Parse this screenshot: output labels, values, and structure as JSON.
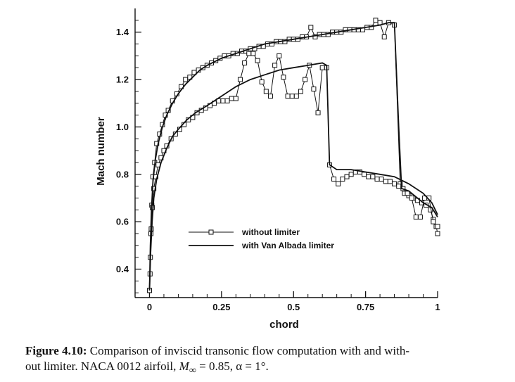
{
  "chart_data": {
    "type": "line",
    "xlabel": "chord",
    "ylabel": "Mach number",
    "xlim": [
      -0.05,
      1.0
    ],
    "ylim": [
      0.28,
      1.5
    ],
    "xticks": [
      0,
      0.25,
      0.5,
      0.75,
      1
    ],
    "xtick_labels": [
      "0",
      "0.25",
      "0.5",
      "0.75",
      "1"
    ],
    "yticks": [
      0.4,
      0.6,
      0.8,
      1.0,
      1.2,
      1.4
    ],
    "ytick_labels": [
      "0.4",
      "0.6",
      "0.8",
      "1.0",
      "1.2",
      "1.4"
    ],
    "grid": false,
    "legend_position": "center-left",
    "series": [
      {
        "name": "without limiter",
        "style": "solid-square-markers",
        "upper": [
          [
            0.0,
            0.31
          ],
          [
            0.002,
            0.38
          ],
          [
            0.005,
            0.55
          ],
          [
            0.008,
            0.67
          ],
          [
            0.012,
            0.79
          ],
          [
            0.018,
            0.85
          ],
          [
            0.025,
            0.93
          ],
          [
            0.035,
            0.97
          ],
          [
            0.045,
            1.01
          ],
          [
            0.055,
            1.05
          ],
          [
            0.065,
            1.07
          ],
          [
            0.08,
            1.11
          ],
          [
            0.095,
            1.14
          ],
          [
            0.11,
            1.17
          ],
          [
            0.125,
            1.2
          ],
          [
            0.14,
            1.21
          ],
          [
            0.155,
            1.23
          ],
          [
            0.17,
            1.24
          ],
          [
            0.185,
            1.25
          ],
          [
            0.2,
            1.26
          ],
          [
            0.215,
            1.27
          ],
          [
            0.23,
            1.28
          ],
          [
            0.245,
            1.29
          ],
          [
            0.26,
            1.3
          ],
          [
            0.275,
            1.3
          ],
          [
            0.29,
            1.31
          ],
          [
            0.305,
            1.31
          ],
          [
            0.32,
            1.32
          ],
          [
            0.335,
            1.32
          ],
          [
            0.35,
            1.33
          ],
          [
            0.365,
            1.33
          ],
          [
            0.38,
            1.34
          ],
          [
            0.395,
            1.34
          ],
          [
            0.41,
            1.35
          ],
          [
            0.425,
            1.35
          ],
          [
            0.44,
            1.36
          ],
          [
            0.455,
            1.36
          ],
          [
            0.47,
            1.36
          ],
          [
            0.485,
            1.37
          ],
          [
            0.5,
            1.37
          ],
          [
            0.515,
            1.37
          ],
          [
            0.53,
            1.38
          ],
          [
            0.545,
            1.38
          ],
          [
            0.56,
            1.42
          ],
          [
            0.575,
            1.38
          ],
          [
            0.59,
            1.39
          ],
          [
            0.605,
            1.39
          ],
          [
            0.62,
            1.39
          ],
          [
            0.635,
            1.4
          ],
          [
            0.65,
            1.4
          ],
          [
            0.665,
            1.4
          ],
          [
            0.68,
            1.41
          ],
          [
            0.695,
            1.41
          ],
          [
            0.71,
            1.41
          ],
          [
            0.725,
            1.41
          ],
          [
            0.74,
            1.41
          ],
          [
            0.755,
            1.42
          ],
          [
            0.77,
            1.42
          ],
          [
            0.785,
            1.45
          ],
          [
            0.8,
            1.44
          ],
          [
            0.815,
            1.38
          ],
          [
            0.83,
            1.44
          ],
          [
            0.85,
            1.43
          ],
          [
            0.87,
            0.76
          ],
          [
            0.885,
            0.72
          ],
          [
            0.9,
            0.71
          ],
          [
            0.915,
            0.7
          ],
          [
            0.93,
            0.69
          ],
          [
            0.945,
            0.68
          ],
          [
            0.96,
            0.67
          ],
          [
            0.975,
            0.65
          ],
          [
            0.985,
            0.61
          ],
          [
            0.995,
            0.58
          ],
          [
            1.0,
            0.55
          ]
        ],
        "lower": [
          [
            0.0,
            0.31
          ],
          [
            0.003,
            0.45
          ],
          [
            0.006,
            0.57
          ],
          [
            0.01,
            0.66
          ],
          [
            0.015,
            0.74
          ],
          [
            0.022,
            0.79
          ],
          [
            0.03,
            0.84
          ],
          [
            0.04,
            0.87
          ],
          [
            0.05,
            0.9
          ],
          [
            0.06,
            0.92
          ],
          [
            0.075,
            0.95
          ],
          [
            0.09,
            0.97
          ],
          [
            0.105,
            0.99
          ],
          [
            0.12,
            1.01
          ],
          [
            0.135,
            1.03
          ],
          [
            0.15,
            1.04
          ],
          [
            0.165,
            1.06
          ],
          [
            0.18,
            1.07
          ],
          [
            0.195,
            1.08
          ],
          [
            0.21,
            1.09
          ],
          [
            0.225,
            1.1
          ],
          [
            0.24,
            1.11
          ],
          [
            0.255,
            1.11
          ],
          [
            0.27,
            1.11
          ],
          [
            0.285,
            1.12
          ],
          [
            0.3,
            1.12
          ],
          [
            0.315,
            1.2
          ],
          [
            0.33,
            1.27
          ],
          [
            0.345,
            1.31
          ],
          [
            0.36,
            1.31
          ],
          [
            0.375,
            1.28
          ],
          [
            0.39,
            1.19
          ],
          [
            0.405,
            1.15
          ],
          [
            0.42,
            1.13
          ],
          [
            0.435,
            1.26
          ],
          [
            0.45,
            1.3
          ],
          [
            0.465,
            1.21
          ],
          [
            0.48,
            1.13
          ],
          [
            0.495,
            1.13
          ],
          [
            0.51,
            1.13
          ],
          [
            0.525,
            1.15
          ],
          [
            0.54,
            1.2
          ],
          [
            0.555,
            1.26
          ],
          [
            0.57,
            1.16
          ],
          [
            0.585,
            1.06
          ],
          [
            0.6,
            1.25
          ],
          [
            0.615,
            1.25
          ],
          [
            0.625,
            0.84
          ],
          [
            0.64,
            0.78
          ],
          [
            0.655,
            0.76
          ],
          [
            0.67,
            0.78
          ],
          [
            0.685,
            0.79
          ],
          [
            0.7,
            0.8
          ],
          [
            0.715,
            0.81
          ],
          [
            0.73,
            0.81
          ],
          [
            0.745,
            0.8
          ],
          [
            0.76,
            0.79
          ],
          [
            0.775,
            0.79
          ],
          [
            0.79,
            0.78
          ],
          [
            0.805,
            0.78
          ],
          [
            0.82,
            0.77
          ],
          [
            0.835,
            0.77
          ],
          [
            0.85,
            0.76
          ],
          [
            0.865,
            0.75
          ],
          [
            0.88,
            0.74
          ],
          [
            0.895,
            0.72
          ],
          [
            0.91,
            0.7
          ],
          [
            0.925,
            0.62
          ],
          [
            0.94,
            0.62
          ],
          [
            0.955,
            0.7
          ],
          [
            0.97,
            0.7
          ],
          [
            0.985,
            0.6
          ],
          [
            1.0,
            0.58
          ]
        ]
      },
      {
        "name": "with Van Albada limiter",
        "style": "solid",
        "upper": [
          [
            0.0,
            0.31
          ],
          [
            0.003,
            0.5
          ],
          [
            0.007,
            0.65
          ],
          [
            0.012,
            0.77
          ],
          [
            0.02,
            0.86
          ],
          [
            0.03,
            0.93
          ],
          [
            0.045,
            1.0
          ],
          [
            0.06,
            1.05
          ],
          [
            0.08,
            1.1
          ],
          [
            0.1,
            1.14
          ],
          [
            0.125,
            1.18
          ],
          [
            0.15,
            1.21
          ],
          [
            0.175,
            1.24
          ],
          [
            0.2,
            1.26
          ],
          [
            0.25,
            1.29
          ],
          [
            0.3,
            1.31
          ],
          [
            0.35,
            1.33
          ],
          [
            0.4,
            1.35
          ],
          [
            0.45,
            1.36
          ],
          [
            0.5,
            1.37
          ],
          [
            0.55,
            1.38
          ],
          [
            0.6,
            1.39
          ],
          [
            0.65,
            1.4
          ],
          [
            0.7,
            1.41
          ],
          [
            0.75,
            1.42
          ],
          [
            0.8,
            1.43
          ],
          [
            0.83,
            1.44
          ],
          [
            0.85,
            1.44
          ],
          [
            0.865,
            1.0
          ],
          [
            0.875,
            0.74
          ],
          [
            0.9,
            0.73
          ],
          [
            0.95,
            0.68
          ],
          [
            0.98,
            0.66
          ],
          [
            1.0,
            0.62
          ]
        ],
        "lower": [
          [
            0.0,
            0.31
          ],
          [
            0.004,
            0.47
          ],
          [
            0.009,
            0.6
          ],
          [
            0.015,
            0.7
          ],
          [
            0.025,
            0.78
          ],
          [
            0.04,
            0.85
          ],
          [
            0.06,
            0.91
          ],
          [
            0.08,
            0.96
          ],
          [
            0.1,
            0.99
          ],
          [
            0.13,
            1.03
          ],
          [
            0.16,
            1.06
          ],
          [
            0.2,
            1.09
          ],
          [
            0.25,
            1.13
          ],
          [
            0.3,
            1.17
          ],
          [
            0.35,
            1.2
          ],
          [
            0.4,
            1.22
          ],
          [
            0.45,
            1.24
          ],
          [
            0.5,
            1.25
          ],
          [
            0.55,
            1.26
          ],
          [
            0.6,
            1.27
          ],
          [
            0.615,
            1.26
          ],
          [
            0.625,
            0.84
          ],
          [
            0.65,
            0.82
          ],
          [
            0.7,
            0.82
          ],
          [
            0.75,
            0.81
          ],
          [
            0.8,
            0.8
          ],
          [
            0.85,
            0.79
          ],
          [
            0.9,
            0.76
          ],
          [
            0.95,
            0.72
          ],
          [
            0.98,
            0.68
          ],
          [
            1.0,
            0.63
          ]
        ]
      }
    ]
  },
  "caption": {
    "label": "Figure 4.10:",
    "line1_rest": "Comparison of inviscid transonic flow computation with and with-",
    "line2_start": "out limiter. NACA 0012 airfoil, ",
    "mach_symbol": "M",
    "mach_sub": "∞",
    "mach_value": " = 0.85, ",
    "alpha_text": "α = 1°."
  }
}
